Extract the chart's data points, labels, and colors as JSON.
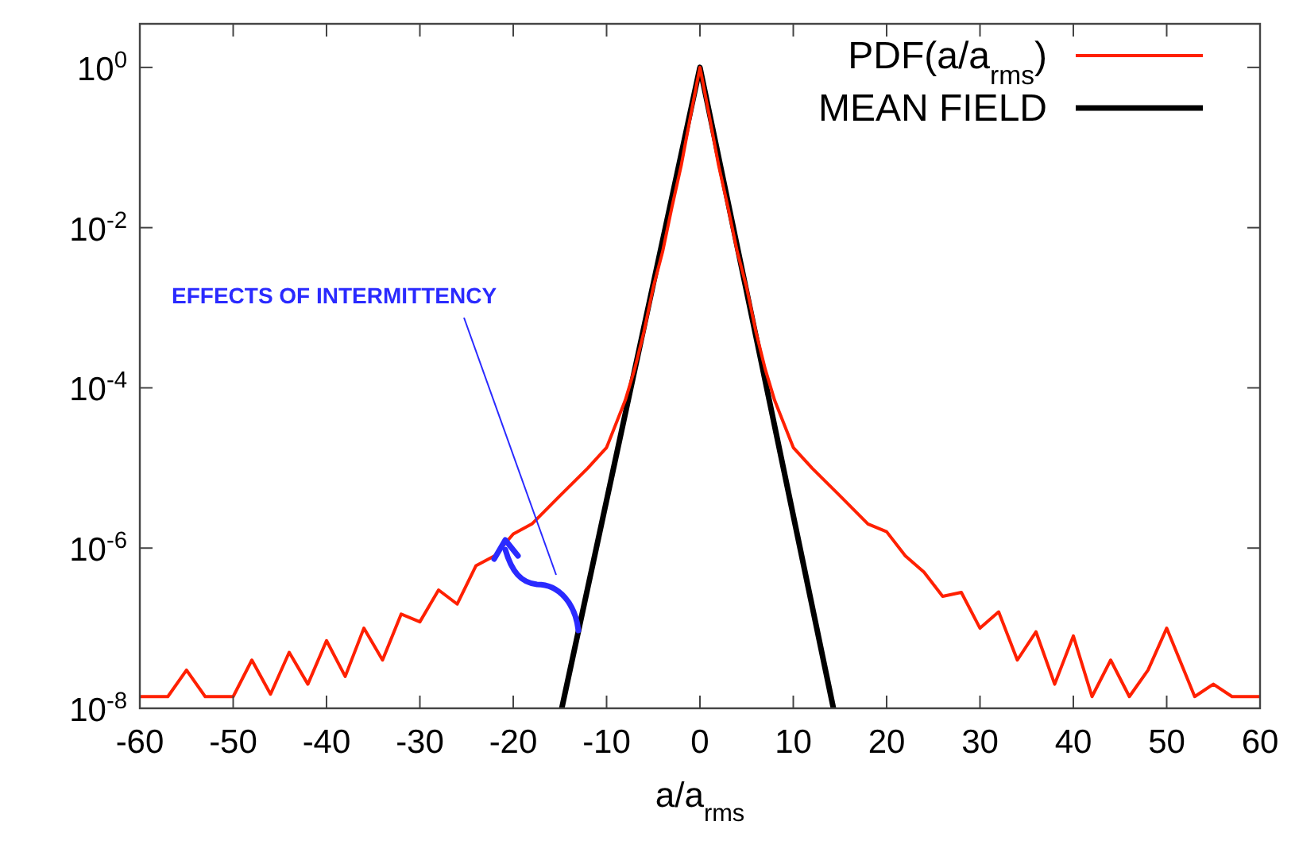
{
  "chart_data": {
    "type": "line",
    "xlabel": "a/a$_{rms}$",
    "log": "y",
    "legend": "top right",
    "grid": false,
    "xlim": [
      -60,
      60
    ],
    "ylim": [
      1e-08,
      3.5
    ],
    "xticks": [
      -60,
      -50,
      -40,
      -30,
      -20,
      -10,
      0,
      10,
      20,
      30,
      40,
      50,
      60
    ],
    "yticks": [
      {
        "value": 1,
        "label": "10$^{0}$"
      },
      {
        "value": 0.01,
        "label": "10$^{-2}$"
      },
      {
        "value": 0.0001,
        "label": "10$^{-4}$"
      },
      {
        "value": 1e-06,
        "label": "10$^{-6}$"
      },
      {
        "value": 1e-08,
        "label": "10$^{-8}$"
      }
    ],
    "annotations": [
      "EFFECTS OF INTERMITTENCY"
    ],
    "series": [
      {
        "name": "PDF(a/a$_{rms}$)",
        "color": "#ff2000",
        "x": [
          -60,
          -57,
          -55,
          -53,
          -50,
          -48,
          -46,
          -44,
          -42,
          -40,
          -38,
          -36,
          -34,
          -32,
          -30,
          -28,
          -26,
          -24,
          -22,
          -20,
          -18,
          -15,
          -12,
          -10,
          -8,
          -7,
          -6,
          -5,
          -4,
          -3,
          -2,
          -1,
          0,
          1,
          2,
          3,
          4,
          5,
          6,
          7,
          8,
          10,
          12,
          15,
          18,
          20,
          22,
          24,
          26,
          28,
          30,
          32,
          34,
          36,
          38,
          40,
          42,
          44,
          46,
          48,
          50,
          53,
          55,
          57,
          60
        ],
        "values": [
          1.4e-08,
          1.4e-08,
          3e-08,
          1.4e-08,
          1.4e-08,
          4e-08,
          1.5e-08,
          5e-08,
          2e-08,
          7e-08,
          2.5e-08,
          1e-07,
          4e-08,
          1.5e-07,
          1.2e-07,
          3e-07,
          2e-07,
          6e-07,
          8e-07,
          1.5e-06,
          2e-06,
          4.5e-06,
          1e-05,
          1.8e-05,
          7e-05,
          0.00017,
          0.0005,
          0.0018,
          0.005,
          0.018,
          0.06,
          0.25,
          1,
          0.25,
          0.06,
          0.018,
          0.005,
          0.0018,
          0.0005,
          0.00017,
          7e-05,
          1.8e-05,
          1e-05,
          4.5e-06,
          2e-06,
          1.6e-06,
          8e-07,
          5e-07,
          2.5e-07,
          2.8e-07,
          1e-07,
          1.6e-07,
          4e-08,
          9e-08,
          2e-08,
          8e-08,
          1.4e-08,
          4e-08,
          1.4e-08,
          3e-08,
          1e-07,
          1.4e-08,
          2e-08,
          1.4e-08,
          1.4e-08
        ]
      },
      {
        "name": "MEAN FIELD",
        "color": "#000000",
        "x": [
          -14.8,
          0,
          14.3
        ],
        "values": [
          1e-08,
          1,
          1e-08
        ]
      }
    ]
  }
}
